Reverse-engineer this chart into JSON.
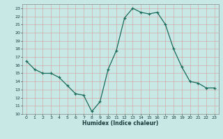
{
  "x": [
    0,
    1,
    2,
    3,
    4,
    5,
    6,
    7,
    8,
    9,
    10,
    11,
    12,
    13,
    14,
    15,
    16,
    17,
    18,
    19,
    20,
    21,
    22,
    23
  ],
  "y": [
    16.5,
    15.5,
    15.0,
    15.0,
    14.5,
    13.5,
    12.5,
    12.3,
    10.3,
    11.5,
    15.5,
    17.8,
    21.8,
    23.0,
    22.5,
    22.3,
    22.5,
    21.0,
    18.0,
    15.8,
    14.0,
    13.8,
    13.2,
    13.2
  ],
  "xlim": [
    -0.5,
    23.5
  ],
  "ylim": [
    10,
    23.5
  ],
  "yticks": [
    10,
    11,
    12,
    13,
    14,
    15,
    16,
    17,
    18,
    19,
    20,
    21,
    22,
    23
  ],
  "xticks": [
    0,
    1,
    2,
    3,
    4,
    5,
    6,
    7,
    8,
    9,
    10,
    11,
    12,
    13,
    14,
    15,
    16,
    17,
    18,
    19,
    20,
    21,
    22,
    23
  ],
  "xlabel": "Humidex (Indice chaleur)",
  "line_color": "#1a6b5a",
  "marker": "+",
  "bg_color": "#c8e8e5",
  "grid_color": "#b0d0cc",
  "label_color": "#1a3a3a",
  "tick_color": "#1a3a3a",
  "spine_color": "#888888"
}
